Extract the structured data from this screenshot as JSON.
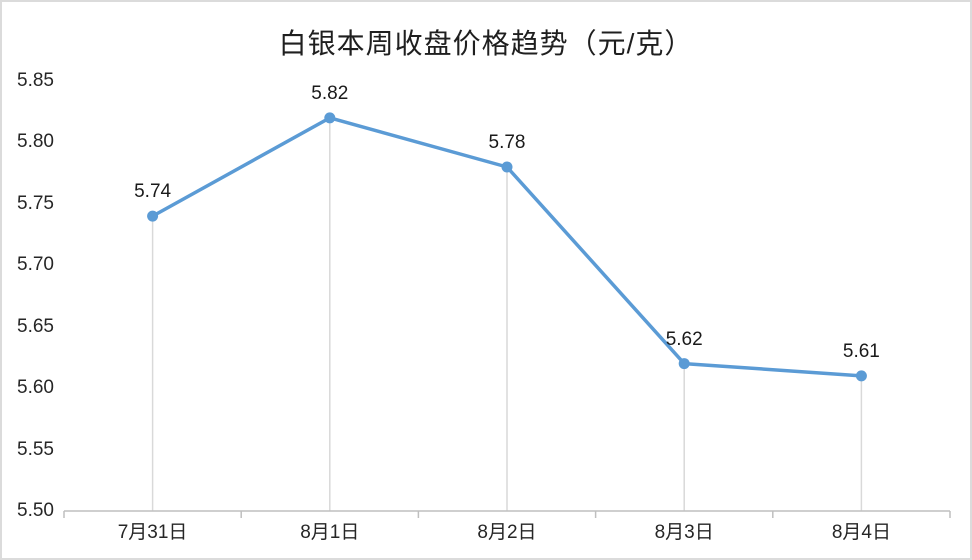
{
  "chart_data": {
    "type": "line",
    "title": "白银本周收盘价格趋势（元/克）",
    "categories": [
      "7月31日",
      "8月1日",
      "8月2日",
      "8月3日",
      "8月4日"
    ],
    "values": [
      5.74,
      5.82,
      5.78,
      5.62,
      5.61
    ],
    "data_labels": [
      "5.74",
      "5.82",
      "5.78",
      "5.62",
      "5.61"
    ],
    "ylim": [
      5.5,
      5.85
    ],
    "ytick_step": 0.05,
    "ytick_labels": [
      "5.85",
      "5.80",
      "5.75",
      "5.70",
      "5.65",
      "5.60",
      "5.55",
      "5.50"
    ],
    "xlabel": "",
    "ylabel": "",
    "legend": "none",
    "horizontal_gridlines": false,
    "drop_lines": true,
    "markers": "circle",
    "data_labels_position": "above"
  },
  "style": {
    "line_color": "#5B9BD5",
    "marker_color": "#5B9BD5",
    "drop_line_color": "#D9D9D9",
    "axis_color": "#BFBFBF",
    "tick_label_color": "#262626",
    "data_label_color": "#1A1A1A",
    "title_color": "#1F1F1F",
    "background_color": "#FFFFFF",
    "border_color": "#DBDBDB"
  }
}
